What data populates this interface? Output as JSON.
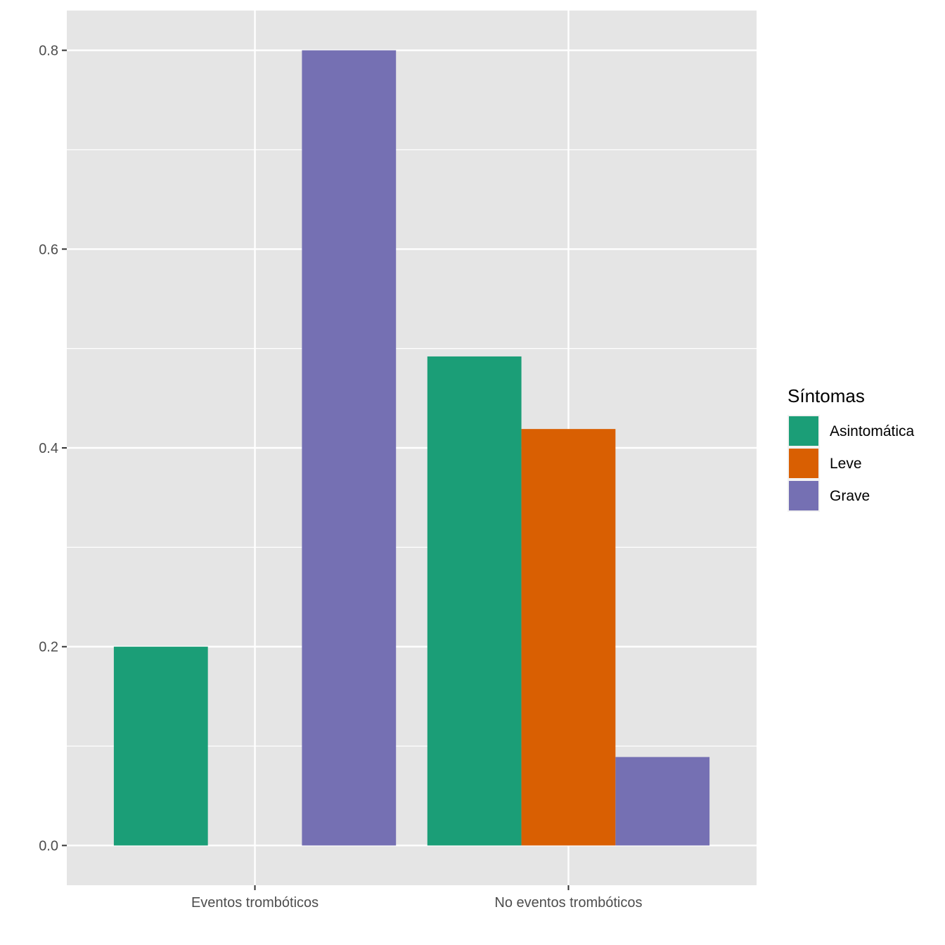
{
  "chart_data": {
    "type": "bar",
    "title": "",
    "xlabel": "",
    "ylabel": "",
    "categories": [
      "Eventos trombóticos",
      "No eventos trombóticos"
    ],
    "series": [
      {
        "name": "Asintomática",
        "color": "#1b9e77",
        "values": [
          0.2,
          0.492
        ]
      },
      {
        "name": "Leve",
        "color": "#d95f02",
        "values": [
          0.0,
          0.419
        ]
      },
      {
        "name": "Grave",
        "color": "#7570b3",
        "values": [
          0.8,
          0.089
        ]
      }
    ],
    "ylim": [
      -0.04,
      0.84
    ],
    "yticks": [
      0.0,
      0.2,
      0.4,
      0.6,
      0.8
    ],
    "ytick_labels": [
      "0.0",
      "0.2",
      "0.4",
      "0.6",
      "0.8"
    ],
    "grid": true,
    "panel_background": "#e5e5e5",
    "legend": {
      "title": "Síntomas",
      "position": "right"
    }
  }
}
